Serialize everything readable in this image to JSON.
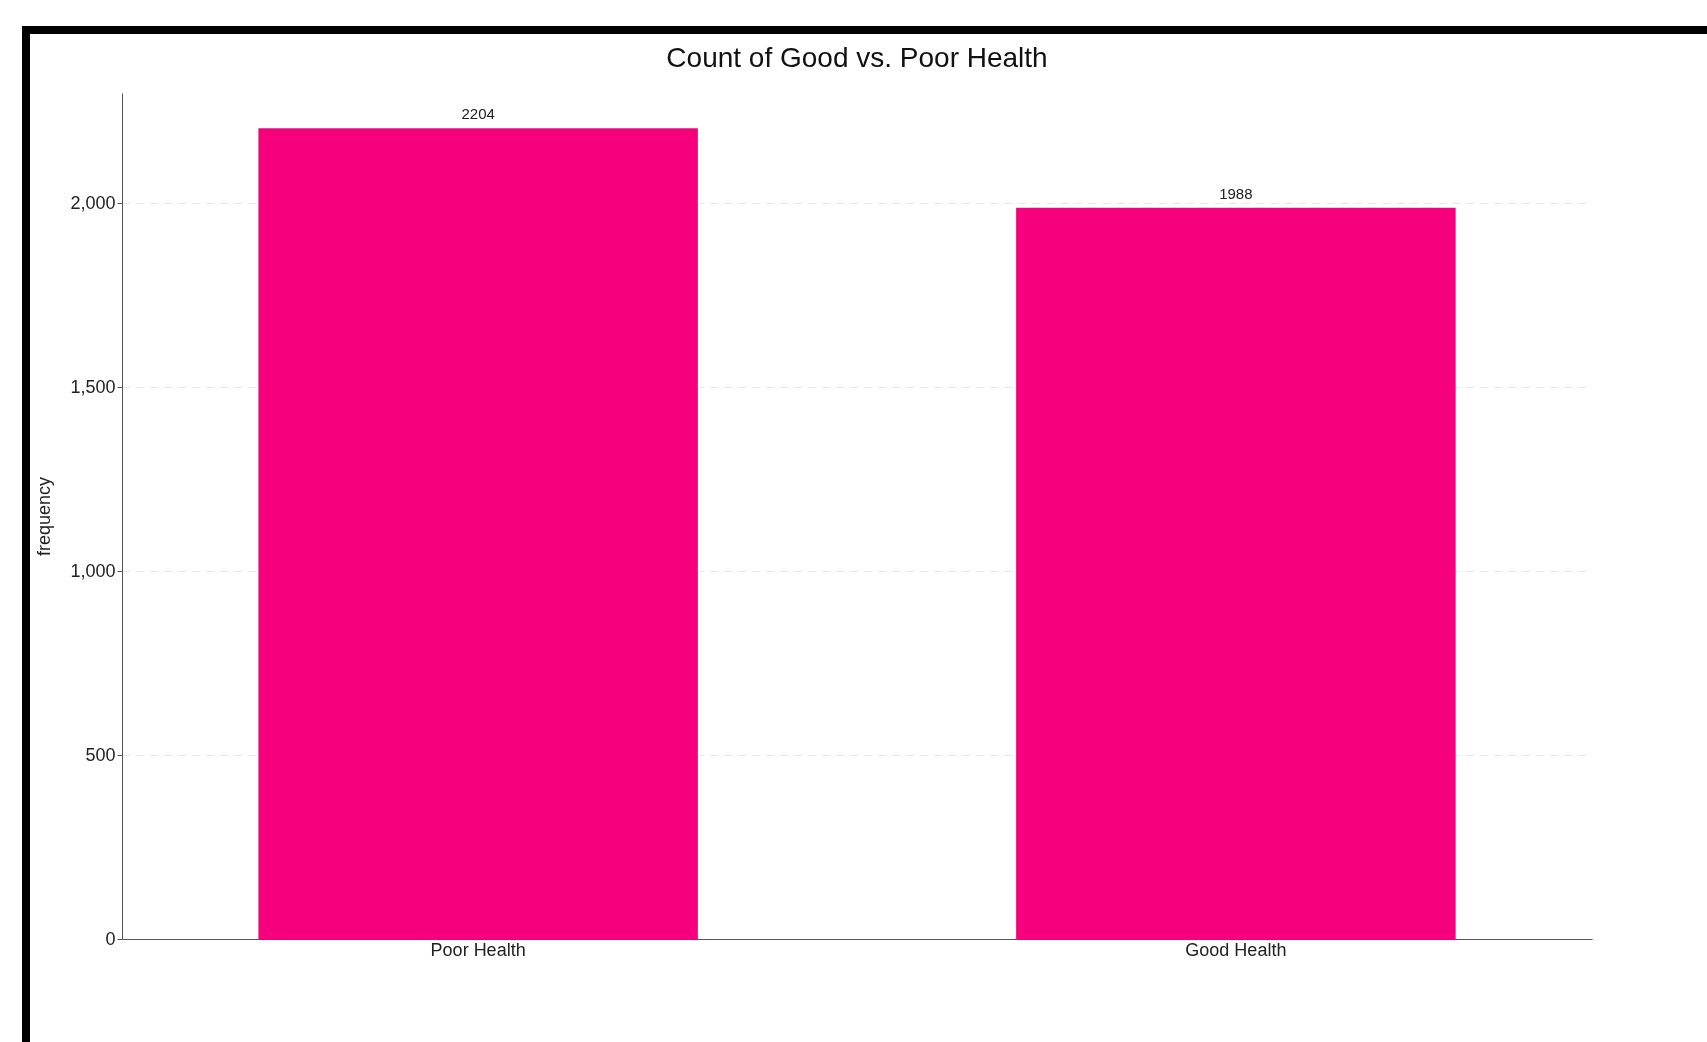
{
  "chart_data": {
    "type": "bar",
    "title": "Count of Good vs. Poor Health",
    "ylabel": "frequency",
    "categories": [
      "Poor Health",
      "Good Health"
    ],
    "values": [
      2204,
      1988
    ],
    "color": "#f7007d",
    "data_labels": true,
    "ylim": [
      0,
      2300
    ],
    "yticks": [
      0,
      {
        "value": 500,
        "label": "500"
      },
      {
        "value": 1000,
        "label": "1,000"
      },
      {
        "value": 1500,
        "label": "1,500"
      },
      {
        "value": 2000,
        "label": "2,000"
      }
    ],
    "grid": "y"
  }
}
